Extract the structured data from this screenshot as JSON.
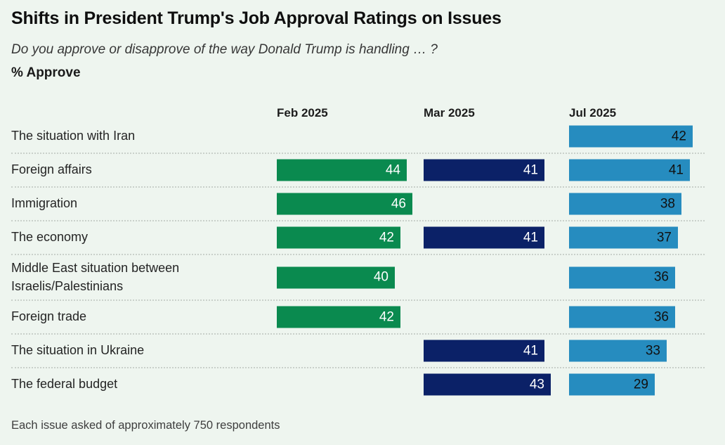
{
  "header": {
    "title": "Shifts in President Trump's Job Approval Ratings on Issues",
    "subtitle": "Do you approve or disapprove of the way Donald Trump is handling … ?",
    "measure_label": "% Approve"
  },
  "footer": {
    "note": "Each issue asked of approximately 750 respondents"
  },
  "colors": {
    "background": "#eef5ef",
    "feb_bar": "#0a8a4f",
    "mar_bar": "#0b2167",
    "jul_bar": "#268cbf",
    "separator": "#c9d0ca"
  },
  "chart_data": {
    "type": "bar",
    "orientation": "horizontal",
    "title": "Shifts in President Trump's Job Approval Ratings on Issues",
    "subtitle": "Do you approve or disapprove of the way Donald Trump is handling … ?",
    "unit_label": "% Approve",
    "categories": [
      "The situation with Iran",
      "Foreign affairs",
      "Immigration",
      "The economy",
      "Middle East situation between Israelis/Palestinians",
      "Foreign trade",
      "The situation in Ukraine",
      "The federal budget"
    ],
    "series": [
      {
        "name": "Feb 2025",
        "color": "#0a8a4f",
        "label_color": "#ffffff",
        "values": [
          null,
          44,
          46,
          42,
          40,
          42,
          null,
          null
        ]
      },
      {
        "name": "Mar 2025",
        "color": "#0b2167",
        "label_color": "#ffffff",
        "values": [
          null,
          41,
          null,
          41,
          null,
          null,
          41,
          43
        ]
      },
      {
        "name": "Jul 2025",
        "color": "#268cbf",
        "label_color": "#111111",
        "values": [
          42,
          41,
          38,
          37,
          36,
          36,
          33,
          29
        ]
      }
    ],
    "xlim": [
      0,
      48
    ],
    "value_labels": "inside-end",
    "legend_position": "column-headers-top",
    "grid": "dotted-row-separators",
    "note": "Each issue asked of approximately 750 respondents"
  }
}
